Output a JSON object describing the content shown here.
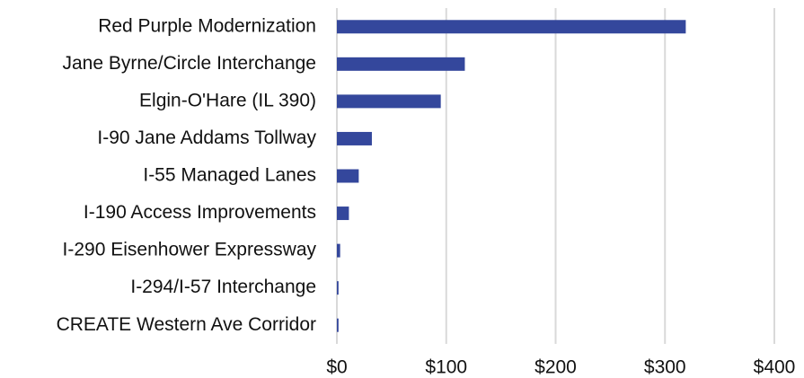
{
  "chart_data": {
    "type": "bar",
    "orientation": "horizontal",
    "categories": [
      "Red Purple Modernization",
      "Jane Byrne/Circle Interchange",
      "Elgin-O'Hare (IL 390)",
      "I-90 Jane Addams Tollway",
      "I-55 Managed Lanes",
      "I-190 Access Improvements",
      "I-290 Eisenhower Expressway",
      "I-294/I-57 Interchange",
      "CREATE Western Ave Corridor"
    ],
    "values": [
      319,
      117,
      95,
      32,
      20,
      11,
      3,
      1.5,
      1.5
    ],
    "color": "#34479c",
    "xlim": [
      0,
      400
    ],
    "xticks": [
      {
        "value": 0,
        "label": "$0"
      },
      {
        "value": 100,
        "label": "$100"
      },
      {
        "value": 200,
        "label": "$200"
      },
      {
        "value": 300,
        "label": "$300"
      },
      {
        "value": 400,
        "label": "$400"
      }
    ],
    "grid": true
  }
}
